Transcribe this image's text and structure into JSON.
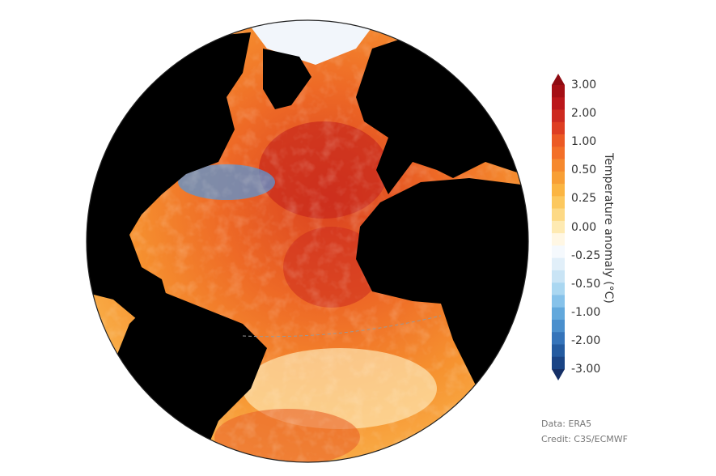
{
  "map": {
    "projection": "orthographic",
    "region": "Atlantic Ocean",
    "land_color": "#000000",
    "legend_position": "right"
  },
  "colorbar": {
    "title": "Temperature anomaly (°C)",
    "ticks": [
      "3.00",
      "2.00",
      "1.00",
      "0.50",
      "0.25",
      "0.00",
      "-0.25",
      "-0.50",
      "-1.00",
      "-2.00",
      "-3.00"
    ],
    "extend": "both",
    "colors": [
      "#a50f15",
      "#bb171b",
      "#cd2a20",
      "#de3e22",
      "#ec5a24",
      "#f36f28",
      "#f6892e",
      "#f89f35",
      "#fbb542",
      "#fcc85e",
      "#fdd985",
      "#feeab2",
      "#fff7e4",
      "#f5f9fd",
      "#e1eff9",
      "#c9e4f5",
      "#aad7f1",
      "#86c2ea",
      "#62a8dc",
      "#4a8fcd",
      "#3574ba",
      "#245ba0",
      "#1a4485"
    ],
    "max_arrow_color": "#8e0b12",
    "min_arrow_color": "#152f66"
  },
  "credits": {
    "data": "Data: ERA5",
    "credit": "Credit: C3S/ECMWF"
  }
}
